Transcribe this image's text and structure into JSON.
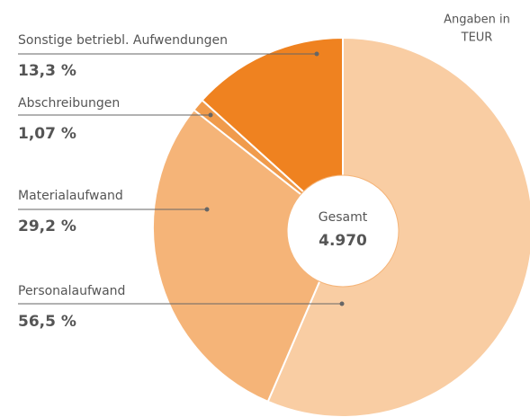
{
  "chart_data": {
    "type": "pie",
    "annotation": [
      "Angaben in",
      "TEUR"
    ],
    "center_label": "Gesamt",
    "center_value": "4.970",
    "categories": [
      "Personalaufwand",
      "Materialaufwand",
      "Abschreibungen",
      "Sonstige betriebl. Aufwendungen"
    ],
    "values": [
      56.5,
      29.2,
      1.07,
      13.3
    ],
    "value_labels": [
      "56,5 %",
      "29,2 %",
      "1,07 %",
      "13,3 %"
    ],
    "colors": [
      "#f9cda3",
      "#f5b478",
      "#f09b4c",
      "#ef8220"
    ]
  }
}
